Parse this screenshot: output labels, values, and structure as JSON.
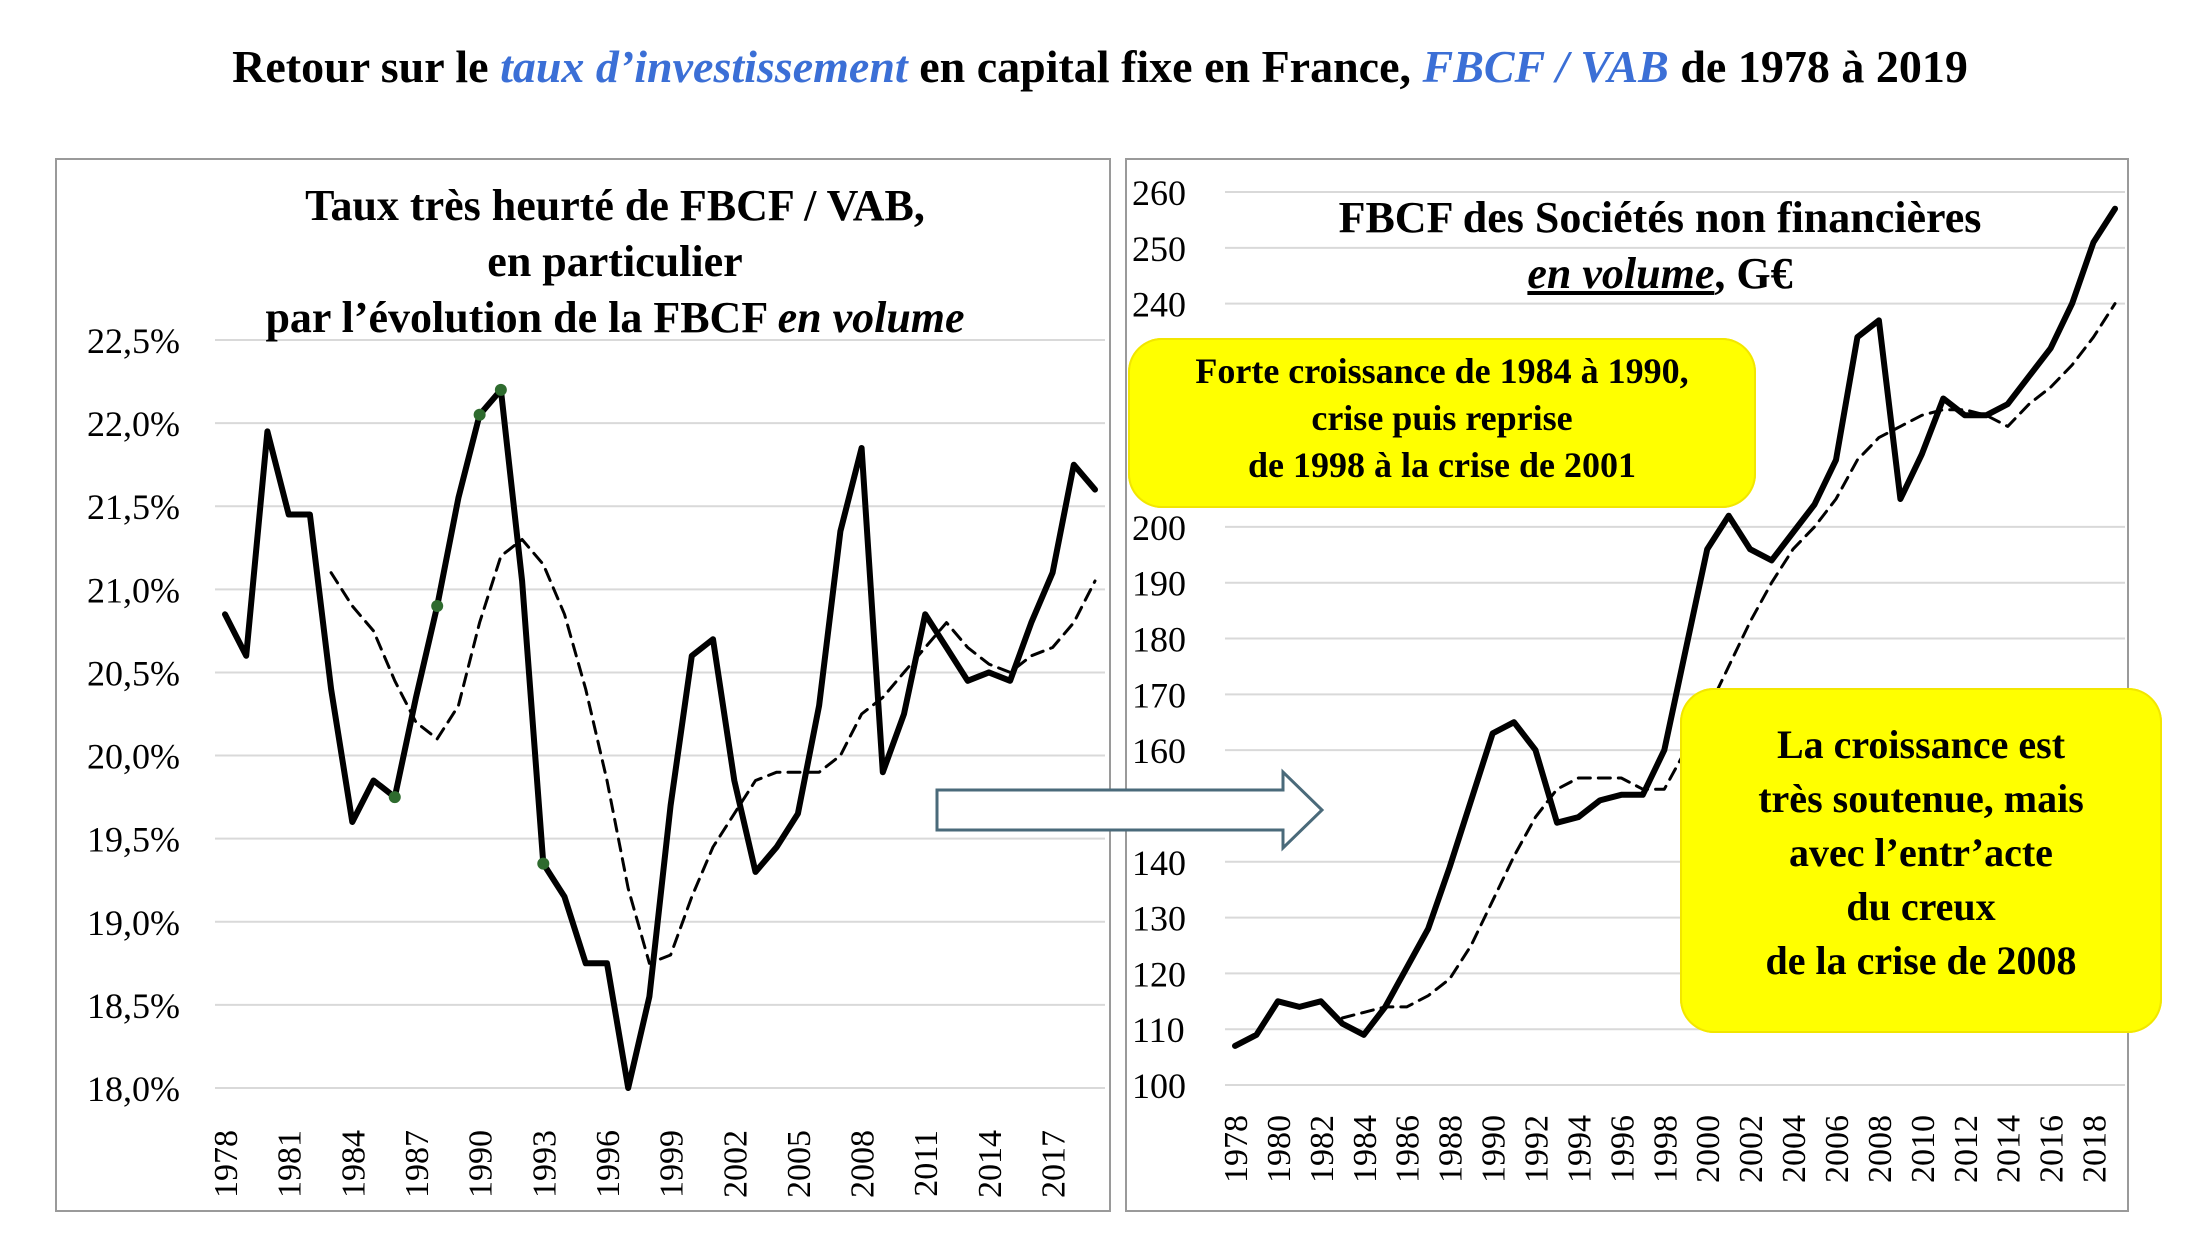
{
  "title": {
    "part1": "Retour sur le ",
    "part2": "taux d’investissement",
    "part3": " en capital fixe en France, ",
    "part4": "FBCF /  VAB",
    "part5": " de 1978 à 2019"
  },
  "colors": {
    "accent_blue": "#3b6fd6",
    "callout_yellow": "#ffff00",
    "line": "#000000",
    "marker_green": "#2e6b2e"
  },
  "left_panel": {
    "title_line1": "Taux très heurté de FBCF / VAB,",
    "title_line2": "en particulier",
    "title_line3a": "par l’évolution de la FBCF ",
    "title_line3b": "en volume"
  },
  "right_panel": {
    "title_line1": "FBCF des Sociétés non financières",
    "title_line2a": "en volume",
    "title_line2b": ", G€"
  },
  "callouts": {
    "first": [
      "Forte croissance  de 1984 à 1990,",
      "crise puis reprise",
      "de 1998 à la crise de 2001"
    ],
    "second": [
      "La croissance est",
      "très  soutenue, mais",
      "avec l’entr’acte",
      "du creux",
      "de la crise de 2008"
    ]
  },
  "chart_data": [
    {
      "type": "line",
      "years": [
        1978,
        1979,
        1980,
        1981,
        1982,
        1983,
        1984,
        1985,
        1986,
        1987,
        1988,
        1989,
        1990,
        1991,
        1992,
        1993,
        1994,
        1995,
        1996,
        1997,
        1998,
        1999,
        2000,
        2001,
        2002,
        2003,
        2004,
        2005,
        2006,
        2007,
        2008,
        2009,
        2010,
        2011,
        2012,
        2013,
        2014,
        2015,
        2016,
        2017,
        2018,
        2019
      ],
      "x_tick_labels": [
        "1978",
        "1981",
        "1984",
        "1987",
        "1990",
        "1993",
        "1996",
        "1999",
        "2002",
        "2005",
        "2008",
        "2011",
        "2014",
        "2017"
      ],
      "y_tick_labels": [
        "18,0%",
        "18,5%",
        "19,0%",
        "19,5%",
        "20,0%",
        "20,5%",
        "21,0%",
        "21,5%",
        "22,0%",
        "22,5%"
      ],
      "y_ticks": [
        18.0,
        18.5,
        19.0,
        19.5,
        20.0,
        20.5,
        21.0,
        21.5,
        22.0,
        22.5
      ],
      "ylim": [
        18.0,
        22.5
      ],
      "grid": true,
      "series": [
        {
          "style": "solid",
          "values": [
            20.85,
            20.6,
            21.95,
            21.45,
            21.45,
            20.4,
            19.6,
            19.85,
            19.75,
            20.35,
            20.9,
            21.55,
            22.05,
            22.2,
            21.05,
            19.35,
            19.15,
            18.75,
            18.75,
            18.0,
            18.55,
            19.7,
            20.6,
            20.7,
            19.85,
            19.3,
            19.45,
            19.65,
            20.3,
            21.35,
            21.85,
            19.9,
            20.25,
            20.85,
            20.65,
            20.45,
            20.5,
            20.45,
            20.8,
            21.1,
            21.75,
            21.6
          ]
        },
        {
          "style": "dashed",
          "values": [
            null,
            null,
            null,
            null,
            null,
            21.1,
            20.9,
            20.75,
            20.45,
            20.2,
            20.1,
            20.3,
            20.8,
            21.2,
            21.3,
            21.15,
            20.85,
            20.4,
            19.85,
            19.2,
            18.75,
            18.8,
            19.15,
            19.45,
            19.65,
            19.85,
            19.9,
            19.9,
            19.9,
            20.0,
            20.25,
            20.35,
            20.5,
            20.65,
            20.8,
            20.65,
            20.55,
            20.5,
            20.6,
            20.65,
            20.8,
            21.05
          ]
        }
      ],
      "markers": [
        {
          "year": 1986,
          "value": 19.75
        },
        {
          "year": 1988,
          "value": 20.9
        },
        {
          "year": 1990,
          "value": 22.05
        },
        {
          "year": 1991,
          "value": 22.2
        },
        {
          "year": 1993,
          "value": 19.35
        }
      ]
    },
    {
      "type": "line",
      "years": [
        1978,
        1979,
        1980,
        1981,
        1982,
        1983,
        1984,
        1985,
        1986,
        1987,
        1988,
        1989,
        1990,
        1991,
        1992,
        1993,
        1994,
        1995,
        1996,
        1997,
        1998,
        1999,
        2000,
        2001,
        2002,
        2003,
        2004,
        2005,
        2006,
        2007,
        2008,
        2009,
        2010,
        2011,
        2012,
        2013,
        2014,
        2015,
        2016,
        2017,
        2018,
        2019
      ],
      "x_tick_labels": [
        "1978",
        "1980",
        "1982",
        "1984",
        "1986",
        "1988",
        "1990",
        "1992",
        "1994",
        "1996",
        "1998",
        "2000",
        "2002",
        "2004",
        "2006",
        "2008",
        "2010",
        "2012",
        "2014",
        "2016",
        "2018"
      ],
      "y_tick_labels": [
        "100",
        "110",
        "120",
        "130",
        "140",
        "160",
        "170",
        "180",
        "190",
        "200",
        "240",
        "250",
        "260"
      ],
      "y_ticks": [
        100,
        110,
        120,
        130,
        140,
        160,
        170,
        180,
        190,
        200,
        240,
        250,
        260
      ],
      "ylim": [
        100,
        260
      ],
      "grid": true,
      "series": [
        {
          "style": "solid",
          "values": [
            107,
            109,
            115,
            114,
            115,
            111,
            109,
            114,
            121,
            128,
            139,
            151,
            163,
            165,
            160,
            147,
            148,
            151,
            152,
            152,
            160,
            178,
            196,
            202,
            196,
            194,
            199,
            204,
            212,
            234,
            237,
            205,
            213,
            223,
            220,
            220,
            222,
            227,
            232,
            240,
            251,
            257
          ]
        },
        {
          "style": "dashed",
          "values": [
            null,
            null,
            null,
            null,
            null,
            112,
            113,
            114,
            114,
            116,
            119,
            125,
            133,
            141,
            148,
            153,
            155,
            155,
            155,
            153,
            153,
            160,
            167,
            175,
            183,
            190,
            196,
            200,
            205,
            212,
            216,
            218,
            220,
            221,
            221,
            220,
            218,
            222,
            225,
            229,
            234,
            240
          ]
        }
      ]
    }
  ]
}
